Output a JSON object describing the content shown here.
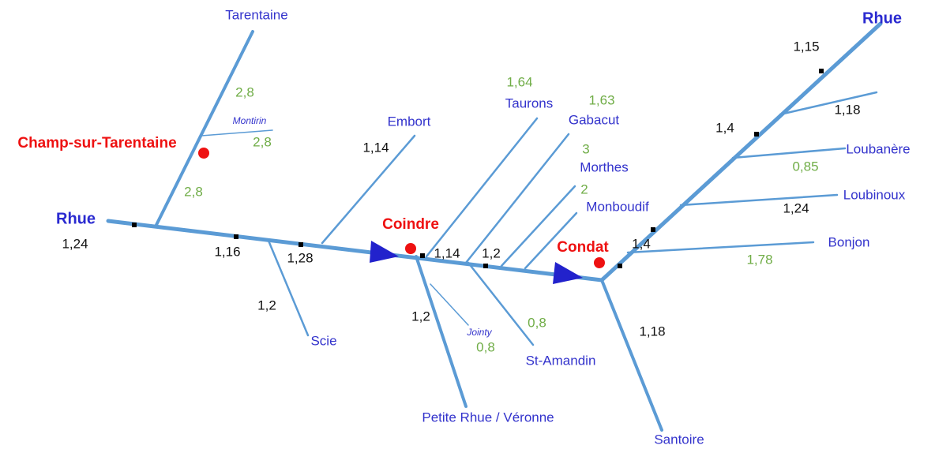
{
  "rivers": [
    "Rhue",
    "Rhue",
    "Tarentaine",
    "Montirin",
    "Embort",
    "Scie",
    "Taurons",
    "Gabacut",
    "Morthes",
    "Monboudif",
    "Jointy",
    "Petite Rhue / Véronne",
    "St-Amandin",
    "Santoire",
    "Loubanère",
    "Loubinoux",
    "Bonjon"
  ],
  "towns": [
    "Champ-sur-Tarentaine",
    "Coindre",
    "Condat"
  ],
  "black_values": [
    "1,24",
    "1,16",
    "1,28",
    "1,14",
    "1,2",
    "1,2",
    "1,14",
    "1,2",
    "1,4",
    "1,18",
    "1,24",
    "1,4",
    "1,18",
    "1,15"
  ],
  "green_values": [
    "2,8",
    "2,8",
    "2,8",
    "1,64",
    "1,63",
    "3",
    "2",
    "0,85",
    "1,78",
    "0,8",
    "0,8"
  ]
}
